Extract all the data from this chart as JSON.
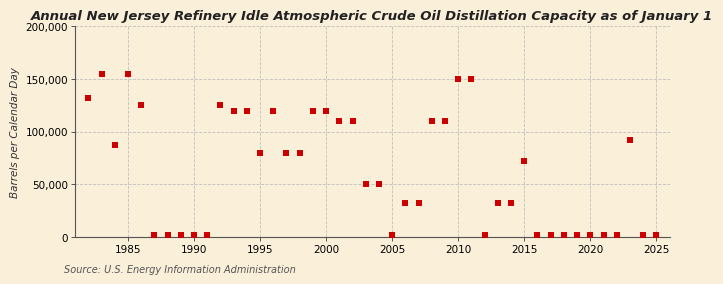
{
  "title": "Annual New Jersey Refinery Idle Atmospheric Crude Oil Distillation Capacity as of January 1",
  "ylabel": "Barrels per Calendar Day",
  "source": "Source: U.S. Energy Information Administration",
  "background_color": "#faefd8",
  "plot_background": "#faefd8",
  "marker_color": "#cc0000",
  "years": [
    1982,
    1983,
    1984,
    1985,
    1986,
    1987,
    1988,
    1989,
    1990,
    1991,
    1992,
    1993,
    1994,
    1995,
    1996,
    1997,
    1998,
    1999,
    2000,
    2001,
    2002,
    2003,
    2004,
    2005,
    2006,
    2007,
    2008,
    2009,
    2010,
    2011,
    2012,
    2013,
    2014,
    2015,
    2016,
    2017,
    2018,
    2019,
    2020,
    2021,
    2022,
    2023,
    2024,
    2025
  ],
  "values": [
    132000,
    155000,
    87000,
    155000,
    125000,
    2000,
    2000,
    2000,
    2000,
    2000,
    125000,
    120000,
    120000,
    80000,
    120000,
    80000,
    80000,
    120000,
    120000,
    110000,
    110000,
    50000,
    50000,
    2000,
    32000,
    32000,
    110000,
    110000,
    150000,
    150000,
    2000,
    32000,
    32000,
    72000,
    2000,
    2000,
    2000,
    2000,
    2000,
    2000,
    2000,
    92000,
    2000,
    2000
  ],
  "xlim": [
    1981,
    2026
  ],
  "ylim": [
    0,
    200000
  ],
  "yticks": [
    0,
    50000,
    100000,
    150000,
    200000
  ],
  "xticks": [
    1985,
    1990,
    1995,
    2000,
    2005,
    2010,
    2015,
    2020,
    2025
  ],
  "grid_color": "#bbbbbb",
  "title_fontsize": 9.5,
  "label_fontsize": 7.5,
  "tick_fontsize": 7.5,
  "source_fontsize": 7
}
